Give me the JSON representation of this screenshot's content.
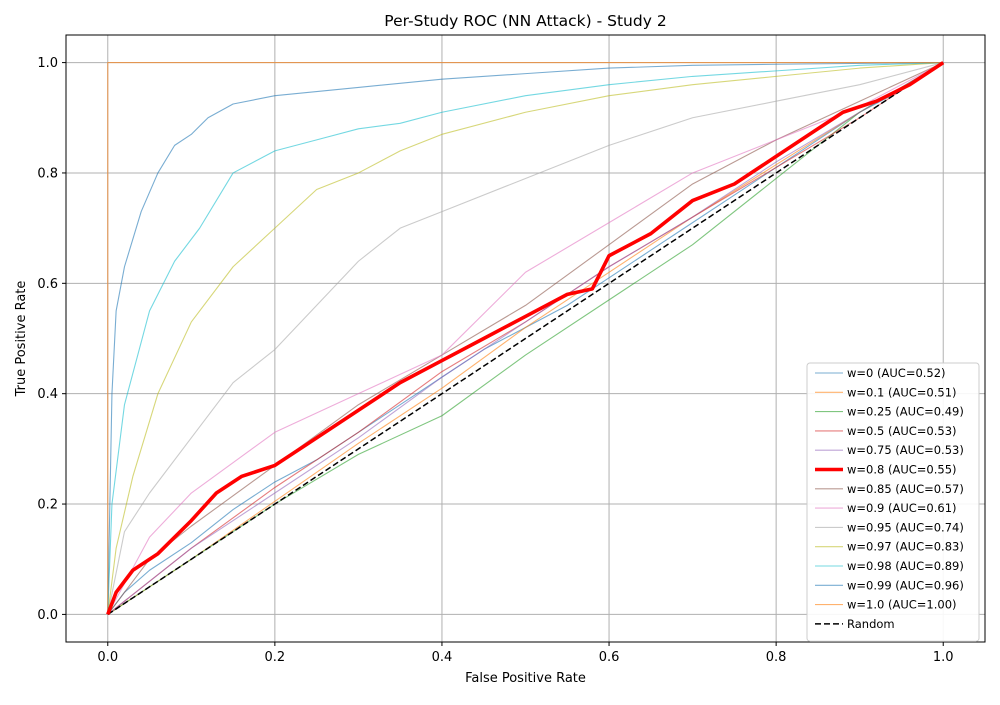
{
  "chart_data": {
    "type": "line",
    "title": "Per-Study ROC (NN Attack) - Study 2",
    "xlabel": "False Positive Rate",
    "ylabel": "True Positive Rate",
    "xlim": [
      -0.05,
      1.05
    ],
    "ylim": [
      -0.05,
      1.05
    ],
    "xticks": [
      "0.0",
      "0.2",
      "0.4",
      "0.6",
      "0.8",
      "1.0"
    ],
    "yticks": [
      "0.0",
      "0.2",
      "0.4",
      "0.6",
      "0.8",
      "1.0"
    ],
    "grid": true,
    "legend_position": "lower-right",
    "series": [
      {
        "name": "w=0 (AUC=0.52)",
        "color": "#1f77b4",
        "emphasis": false,
        "x": [
          0,
          0.02,
          0.05,
          0.1,
          0.15,
          0.2,
          0.25,
          0.3,
          0.35,
          0.4,
          0.45,
          0.5,
          0.55,
          0.6,
          0.65,
          0.7,
          0.75,
          0.8,
          0.85,
          0.9,
          0.95,
          1.0
        ],
        "y": [
          0,
          0.04,
          0.08,
          0.13,
          0.19,
          0.24,
          0.28,
          0.33,
          0.38,
          0.43,
          0.48,
          0.52,
          0.56,
          0.61,
          0.66,
          0.71,
          0.76,
          0.81,
          0.86,
          0.91,
          0.95,
          1.0
        ]
      },
      {
        "name": "w=0.1 (AUC=0.51)",
        "color": "#ff7f0e",
        "emphasis": false,
        "x": [
          0,
          0.05,
          0.1,
          0.2,
          0.3,
          0.4,
          0.5,
          0.6,
          0.7,
          0.8,
          0.9,
          1.0
        ],
        "y": [
          0,
          0.05,
          0.1,
          0.205,
          0.31,
          0.41,
          0.52,
          0.62,
          0.72,
          0.815,
          0.91,
          1.0
        ]
      },
      {
        "name": "w=0.25 (AUC=0.49)",
        "color": "#2ca02c",
        "emphasis": false,
        "x": [
          0,
          0.05,
          0.1,
          0.2,
          0.3,
          0.4,
          0.5,
          0.6,
          0.7,
          0.8,
          0.9,
          1.0
        ],
        "y": [
          0,
          0.05,
          0.1,
          0.2,
          0.29,
          0.36,
          0.47,
          0.57,
          0.67,
          0.79,
          0.91,
          1.0
        ]
      },
      {
        "name": "w=0.5 (AUC=0.53)",
        "color": "#d62728",
        "emphasis": false,
        "x": [
          0,
          0.05,
          0.1,
          0.2,
          0.3,
          0.4,
          0.5,
          0.6,
          0.7,
          0.8,
          0.9,
          1.0
        ],
        "y": [
          0,
          0.06,
          0.12,
          0.23,
          0.33,
          0.44,
          0.53,
          0.63,
          0.72,
          0.81,
          0.9,
          1.0
        ]
      },
      {
        "name": "w=0.75 (AUC=0.53)",
        "color": "#9467bd",
        "emphasis": false,
        "x": [
          0,
          0.05,
          0.1,
          0.2,
          0.3,
          0.4,
          0.5,
          0.6,
          0.7,
          0.8,
          0.9,
          1.0
        ],
        "y": [
          0,
          0.06,
          0.12,
          0.22,
          0.32,
          0.43,
          0.53,
          0.63,
          0.72,
          0.82,
          0.91,
          1.0
        ]
      },
      {
        "name": "w=0.8 (AUC=0.55)",
        "color": "#ff0000",
        "emphasis": true,
        "x": [
          0,
          0.01,
          0.03,
          0.06,
          0.1,
          0.13,
          0.16,
          0.2,
          0.25,
          0.3,
          0.35,
          0.4,
          0.45,
          0.5,
          0.55,
          0.58,
          0.6,
          0.65,
          0.7,
          0.75,
          0.8,
          0.85,
          0.88,
          0.92,
          0.96,
          1.0
        ],
        "y": [
          0,
          0.04,
          0.08,
          0.11,
          0.17,
          0.22,
          0.25,
          0.27,
          0.32,
          0.37,
          0.42,
          0.46,
          0.5,
          0.54,
          0.58,
          0.59,
          0.65,
          0.69,
          0.75,
          0.78,
          0.83,
          0.88,
          0.91,
          0.93,
          0.96,
          1.0
        ]
      },
      {
        "name": "w=0.85 (AUC=0.57)",
        "color": "#8c564b",
        "emphasis": false,
        "x": [
          0,
          0.05,
          0.1,
          0.2,
          0.3,
          0.4,
          0.5,
          0.6,
          0.7,
          0.8,
          0.9,
          1.0
        ],
        "y": [
          0,
          0.1,
          0.16,
          0.27,
          0.38,
          0.47,
          0.56,
          0.67,
          0.78,
          0.86,
          0.93,
          1.0
        ]
      },
      {
        "name": "w=0.9 (AUC=0.61)",
        "color": "#e377c2",
        "emphasis": false,
        "x": [
          0,
          0.05,
          0.1,
          0.2,
          0.3,
          0.4,
          0.5,
          0.6,
          0.7,
          0.8,
          0.9,
          1.0
        ],
        "y": [
          0,
          0.14,
          0.22,
          0.33,
          0.4,
          0.47,
          0.62,
          0.71,
          0.8,
          0.86,
          0.92,
          1.0
        ]
      },
      {
        "name": "w=0.95 (AUC=0.74)",
        "color": "#a8a8a8",
        "emphasis": false,
        "x": [
          0,
          0.02,
          0.05,
          0.1,
          0.15,
          0.2,
          0.25,
          0.3,
          0.35,
          0.4,
          0.5,
          0.6,
          0.7,
          0.8,
          0.9,
          1.0
        ],
        "y": [
          0,
          0.15,
          0.22,
          0.32,
          0.42,
          0.48,
          0.56,
          0.64,
          0.7,
          0.73,
          0.79,
          0.85,
          0.9,
          0.93,
          0.96,
          1.0
        ]
      },
      {
        "name": "w=0.97 (AUC=0.83)",
        "color": "#bcbd22",
        "emphasis": false,
        "x": [
          0,
          0.01,
          0.03,
          0.06,
          0.1,
          0.15,
          0.2,
          0.25,
          0.3,
          0.35,
          0.4,
          0.5,
          0.6,
          0.7,
          0.8,
          0.9,
          1.0
        ],
        "y": [
          0,
          0.12,
          0.25,
          0.4,
          0.53,
          0.63,
          0.7,
          0.77,
          0.8,
          0.84,
          0.87,
          0.91,
          0.94,
          0.96,
          0.975,
          0.99,
          1.0
        ]
      },
      {
        "name": "w=0.98 (AUC=0.89)",
        "color": "#17becf",
        "emphasis": false,
        "x": [
          0,
          0.005,
          0.02,
          0.05,
          0.08,
          0.11,
          0.15,
          0.2,
          0.25,
          0.3,
          0.35,
          0.4,
          0.5,
          0.6,
          0.7,
          0.8,
          0.9,
          1.0
        ],
        "y": [
          0,
          0.2,
          0.38,
          0.55,
          0.64,
          0.7,
          0.8,
          0.84,
          0.86,
          0.88,
          0.89,
          0.91,
          0.94,
          0.96,
          0.975,
          0.985,
          0.995,
          1.0
        ]
      },
      {
        "name": "w=0.99 (AUC=0.96)",
        "color": "#1f77b4",
        "emphasis": false,
        "x": [
          0,
          0.005,
          0.01,
          0.02,
          0.04,
          0.06,
          0.08,
          0.1,
          0.12,
          0.15,
          0.2,
          0.3,
          0.4,
          0.5,
          0.6,
          0.7,
          0.8,
          1.0
        ],
        "y": [
          0,
          0.4,
          0.55,
          0.63,
          0.73,
          0.8,
          0.85,
          0.87,
          0.9,
          0.925,
          0.94,
          0.955,
          0.97,
          0.98,
          0.99,
          0.995,
          0.997,
          1.0
        ]
      },
      {
        "name": "w=1.0 (AUC=1.00)",
        "color": "#ff7f0e",
        "emphasis": false,
        "x": [
          0,
          0,
          1.0
        ],
        "y": [
          0,
          1.0,
          1.0
        ]
      },
      {
        "name": "Random",
        "color": "#000000",
        "emphasis": false,
        "dashed": true,
        "x": [
          0,
          1.0
        ],
        "y": [
          0,
          1.0
        ]
      }
    ]
  }
}
